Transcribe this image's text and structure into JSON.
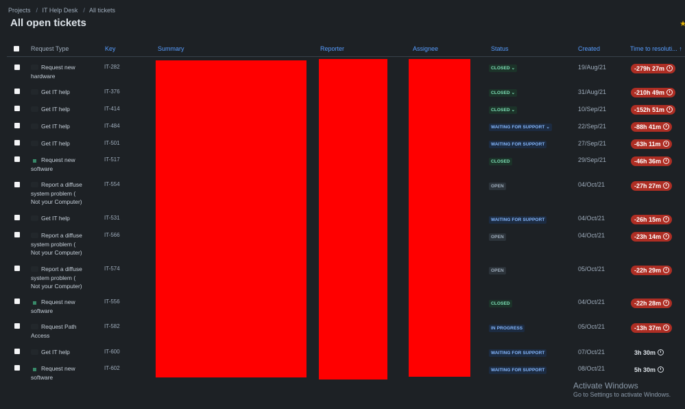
{
  "breadcrumb": [
    "Projects",
    "IT Help Desk",
    "All tickets"
  ],
  "title": "All open tickets",
  "columns": {
    "request_type": "Request Type",
    "key": "Key",
    "summary": "Summary",
    "reporter": "Reporter",
    "assignee": "Assignee",
    "status": "Status",
    "created": "Created",
    "ttr": "Time to resoluti..."
  },
  "rows": [
    {
      "type": "Request new hardware",
      "key": "IT-282",
      "status": "CLOSED",
      "created": "19/Aug/21",
      "ttr": "-279h 27m"
    },
    {
      "type": "Get IT help",
      "key": "IT-376",
      "status": "CLOSED",
      "created": "31/Aug/21",
      "ttr": "-210h 49m"
    },
    {
      "type": "Get IT help",
      "key": "IT-414",
      "status": "CLOSED",
      "created": "10/Sep/21",
      "ttr": "-152h 51m"
    },
    {
      "type": "Get IT help",
      "key": "IT-484",
      "status": "WAITING FOR SUPPORT",
      "created": "22/Sep/21",
      "ttr": "-88h 41m"
    },
    {
      "type": "Get IT help",
      "key": "IT-501",
      "status": "WAITING FOR SUPPORT",
      "created": "27/Sep/21",
      "ttr": "-63h 11m"
    },
    {
      "type": "Request new software",
      "key": "IT-517",
      "status": "CLOSED",
      "created": "29/Sep/21",
      "ttr": "-46h 36m"
    },
    {
      "type": "Report a diffuse system problem ( Not your Computer)",
      "key": "IT-554",
      "status": "OPEN",
      "created": "04/Oct/21",
      "ttr": "-27h 27m"
    },
    {
      "type": "Get IT help",
      "key": "IT-531",
      "status": "WAITING FOR SUPPORT",
      "created": "04/Oct/21",
      "ttr": "-26h 15m"
    },
    {
      "type": "Report a diffuse system problem ( Not your Computer)",
      "key": "IT-566",
      "status": "OPEN",
      "created": "04/Oct/21",
      "ttr": "-23h 14m"
    },
    {
      "type": "Report a diffuse system problem ( Not your Computer)",
      "key": "IT-574",
      "status": "OPEN",
      "created": "05/Oct/21",
      "ttr": "-22h 29m"
    },
    {
      "type": "Request new software",
      "key": "IT-556",
      "status": "CLOSED",
      "created": "04/Oct/21",
      "ttr": "-22h 28m"
    },
    {
      "type": "Request Path Access",
      "key": "IT-582",
      "status": "IN PROGRESS",
      "created": "05/Oct/21",
      "ttr": "-13h 37m"
    },
    {
      "type": "Get IT help",
      "key": "IT-600",
      "status": "WAITING FOR SUPPORT",
      "created": "07/Oct/21",
      "ttr": "3h 30m"
    },
    {
      "type": "Request new software",
      "key": "IT-602",
      "status": "WAITING FOR SUPPORT",
      "created": "08/Oct/21",
      "ttr": "5h 30m"
    }
  ],
  "watermark": {
    "line1": "Activate Windows",
    "line2": "Go to Settings to activate Windows."
  }
}
